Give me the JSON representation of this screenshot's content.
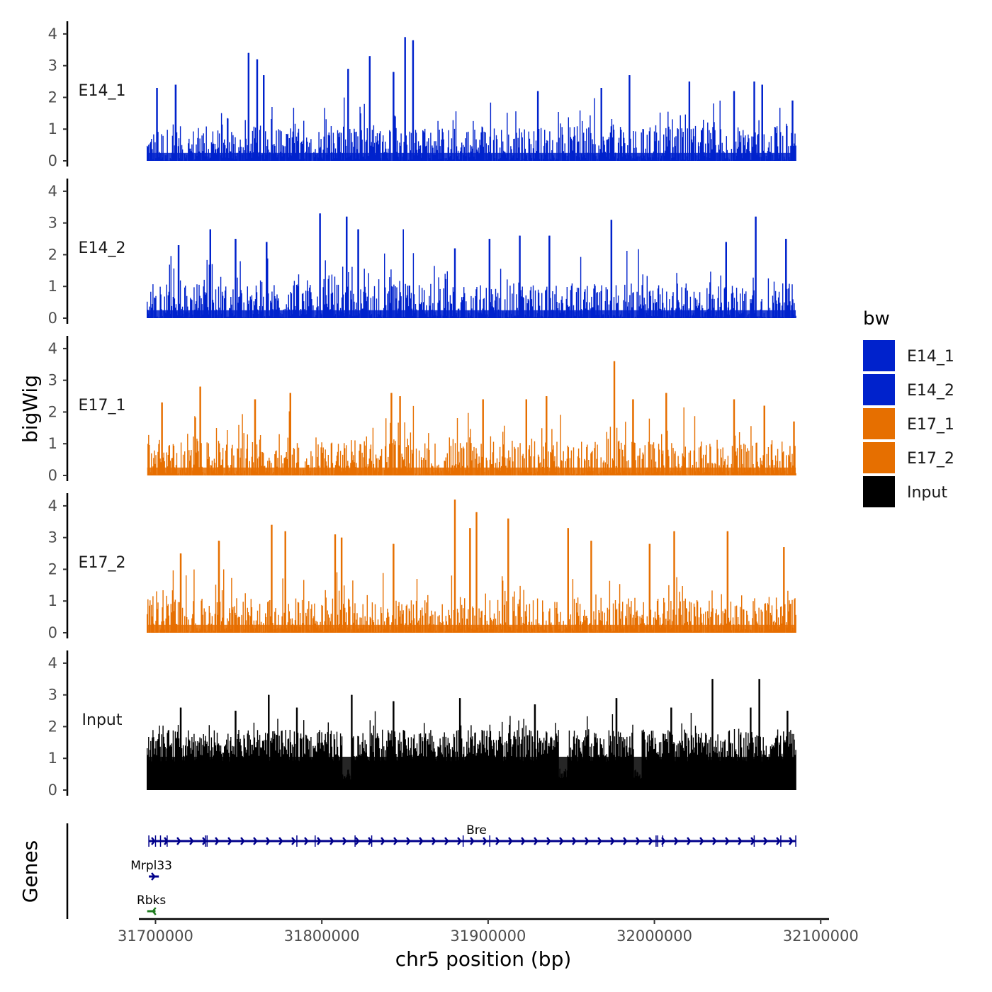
{
  "chart_data": {
    "type": "area",
    "ylabel": "bigWig",
    "xlabel": "chr5 position (bp)",
    "xlim": [
      31695000,
      32085000
    ],
    "x_axis_range": [
      31690000,
      32105000
    ],
    "ylim": [
      0,
      4.4
    ],
    "y_ticks": [
      0,
      1,
      2,
      3,
      4
    ],
    "x_ticks": [
      31700000,
      31800000,
      31900000,
      32000000,
      32100000
    ],
    "x_tick_labels": [
      "31700000",
      "31800000",
      "31900000",
      "32000000",
      "32100000"
    ],
    "tracks": [
      {
        "name": "E14_1",
        "group": "E14_1",
        "color": "#0022cc",
        "peaks": [
          {
            "x": 31756000,
            "y": 3.4
          },
          {
            "x": 31761000,
            "y": 3.2
          },
          {
            "x": 31816000,
            "y": 2.9
          },
          {
            "x": 31829000,
            "y": 3.3
          },
          {
            "x": 31850000,
            "y": 3.9
          },
          {
            "x": 31855000,
            "y": 3.8
          },
          {
            "x": 31712000,
            "y": 2.4
          },
          {
            "x": 31701000,
            "y": 2.3
          },
          {
            "x": 31765000,
            "y": 2.7
          },
          {
            "x": 31843000,
            "y": 2.8
          },
          {
            "x": 31985000,
            "y": 2.7
          },
          {
            "x": 32021000,
            "y": 2.5
          },
          {
            "x": 32060000,
            "y": 2.5
          },
          {
            "x": 32065000,
            "y": 2.4
          },
          {
            "x": 31968000,
            "y": 2.3
          },
          {
            "x": 31930000,
            "y": 2.2
          },
          {
            "x": 32048000,
            "y": 2.2
          },
          {
            "x": 32083000,
            "y": 1.9
          }
        ]
      },
      {
        "name": "E14_2",
        "group": "E14_2",
        "color": "#0022cc",
        "peaks": [
          {
            "x": 31799000,
            "y": 3.3
          },
          {
            "x": 31815000,
            "y": 3.2
          },
          {
            "x": 31822000,
            "y": 2.8
          },
          {
            "x": 31733000,
            "y": 2.8
          },
          {
            "x": 31748000,
            "y": 2.5
          },
          {
            "x": 31849000,
            "y": 2.8
          },
          {
            "x": 31974000,
            "y": 3.1
          },
          {
            "x": 32061000,
            "y": 3.2
          },
          {
            "x": 31901000,
            "y": 2.5
          },
          {
            "x": 31919000,
            "y": 2.6
          },
          {
            "x": 31937000,
            "y": 2.6
          },
          {
            "x": 32043000,
            "y": 2.4
          },
          {
            "x": 31714000,
            "y": 2.3
          },
          {
            "x": 32079000,
            "y": 2.5
          },
          {
            "x": 31880000,
            "y": 2.2
          },
          {
            "x": 31767000,
            "y": 2.4
          }
        ]
      },
      {
        "name": "E17_1",
        "group": "E17_1",
        "color": "#e66f00",
        "peaks": [
          {
            "x": 31727000,
            "y": 2.8
          },
          {
            "x": 31704000,
            "y": 2.3
          },
          {
            "x": 31781000,
            "y": 2.6
          },
          {
            "x": 31842000,
            "y": 2.6
          },
          {
            "x": 31847000,
            "y": 2.5
          },
          {
            "x": 31897000,
            "y": 2.4
          },
          {
            "x": 31976000,
            "y": 3.6
          },
          {
            "x": 31923000,
            "y": 2.4
          },
          {
            "x": 31935000,
            "y": 2.5
          },
          {
            "x": 31987000,
            "y": 2.4
          },
          {
            "x": 32007000,
            "y": 2.6
          },
          {
            "x": 32048000,
            "y": 2.4
          },
          {
            "x": 32066000,
            "y": 2.2
          },
          {
            "x": 32084000,
            "y": 1.7
          },
          {
            "x": 31760000,
            "y": 2.4
          }
        ]
      },
      {
        "name": "E17_2",
        "group": "E17_2",
        "color": "#e66f00",
        "peaks": [
          {
            "x": 31880000,
            "y": 4.2
          },
          {
            "x": 31893000,
            "y": 3.8
          },
          {
            "x": 31912000,
            "y": 3.6
          },
          {
            "x": 31770000,
            "y": 3.4
          },
          {
            "x": 31778000,
            "y": 3.2
          },
          {
            "x": 31889000,
            "y": 3.3
          },
          {
            "x": 31948000,
            "y": 3.3
          },
          {
            "x": 31738000,
            "y": 2.9
          },
          {
            "x": 31812000,
            "y": 3.0
          },
          {
            "x": 31808000,
            "y": 3.1
          },
          {
            "x": 32012000,
            "y": 3.2
          },
          {
            "x": 32044000,
            "y": 3.2
          },
          {
            "x": 32078000,
            "y": 2.7
          },
          {
            "x": 31715000,
            "y": 2.5
          },
          {
            "x": 31843000,
            "y": 2.8
          },
          {
            "x": 31962000,
            "y": 2.9
          },
          {
            "x": 31997000,
            "y": 2.8
          }
        ]
      },
      {
        "name": "Input",
        "group": "Input",
        "color": "#000000",
        "peaks": [
          {
            "x": 32035000,
            "y": 3.5
          },
          {
            "x": 32063000,
            "y": 3.5
          },
          {
            "x": 31768000,
            "y": 3.0
          },
          {
            "x": 31818000,
            "y": 3.0
          },
          {
            "x": 31883000,
            "y": 2.9
          },
          {
            "x": 31977000,
            "y": 2.9
          },
          {
            "x": 31843000,
            "y": 2.8
          },
          {
            "x": 31928000,
            "y": 2.7
          },
          {
            "x": 31715000,
            "y": 2.6
          },
          {
            "x": 32010000,
            "y": 2.6
          },
          {
            "x": 32058000,
            "y": 2.6
          },
          {
            "x": 31748000,
            "y": 2.5
          },
          {
            "x": 31785000,
            "y": 2.6
          },
          {
            "x": 32080000,
            "y": 2.5
          }
        ],
        "dips": [
          31815000,
          31945000,
          31990000
        ]
      }
    ],
    "legend": {
      "title": "bw",
      "placement": "right",
      "entries": [
        {
          "label": "E14_1",
          "color": "#0022cc"
        },
        {
          "label": "E14_2",
          "color": "#0022cc"
        },
        {
          "label": "E17_1",
          "color": "#e66f00"
        },
        {
          "label": "E17_2",
          "color": "#e66f00"
        },
        {
          "label": "Input",
          "color": "#000000"
        }
      ]
    },
    "genes_track": {
      "label": "Genes",
      "genes": [
        {
          "name": "Bre",
          "start": 31696000,
          "end": 32085000,
          "strand": "+",
          "color": "#00008b",
          "exons": [
            31696000,
            31700000,
            31703000,
            31707000,
            31730000,
            31731000,
            31785000,
            31796000,
            31820000,
            31830000,
            31885000,
            31901000,
            32001000,
            32002000,
            32005000,
            32060000,
            32076000,
            32085000
          ]
        },
        {
          "name": "Mrpl33",
          "start": 31696000,
          "end": 31702000,
          "strand": "+",
          "color": "#00008b",
          "exons": []
        },
        {
          "name": "Rbks",
          "start": 31695000,
          "end": 31700000,
          "strand": "-",
          "color": "#1e7b1e",
          "exons": []
        }
      ]
    }
  }
}
